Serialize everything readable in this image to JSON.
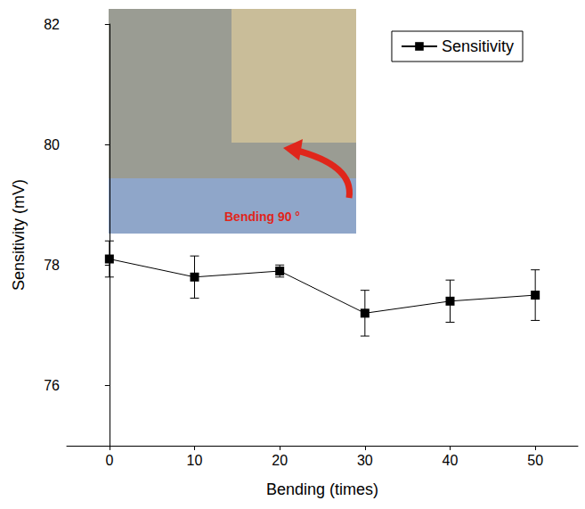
{
  "chart_data": {
    "type": "line",
    "xlabel": "Bending (times)",
    "ylabel": "Sensitivity (mV)",
    "annotation": "Bending 90 °",
    "x": [
      0,
      10,
      20,
      30,
      40,
      50
    ],
    "series": [
      {
        "name": "Sensitivity",
        "color": "#000000",
        "marker": "square",
        "line_style": "solid",
        "values": [
          78.1,
          77.8,
          77.9,
          77.2,
          77.4,
          77.5
        ],
        "errors": [
          0.3,
          0.35,
          0.1,
          0.38,
          0.35,
          0.42
        ]
      }
    ],
    "xlim": [
      -5,
      55
    ],
    "xticks": [
      0,
      10,
      20,
      30,
      40,
      50
    ],
    "ylim": [
      75,
      82
    ],
    "yticks": [
      76,
      78,
      80,
      82
    ],
    "grid": false,
    "legend": "upper right"
  }
}
